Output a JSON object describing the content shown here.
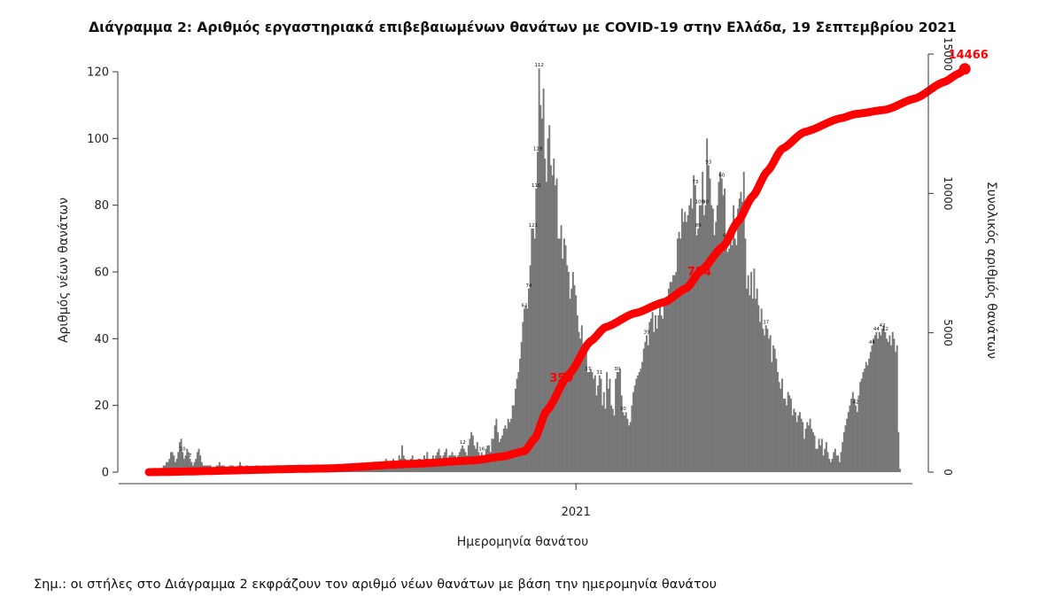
{
  "chart_data": {
    "type": "bar",
    "title": "Διάγραμμα 2: Αριθμός εργαστηριακά επιβεβαιωμένων θανάτων με COVID-19 στην Ελλάδα, 19 Σεπτεμβρίου 2021",
    "xlabel": "Ημερομηνία θανάτου",
    "ylabel": "Αριθμός νέων θανάτων",
    "y2label": "Συνολικός αριθμός θανάτων",
    "x_ticks": [
      "2021"
    ],
    "y_ticks": [
      0,
      20,
      40,
      60,
      80,
      100,
      120
    ],
    "y2_ticks": [
      0,
      5000,
      10000,
      15000
    ],
    "ylim": [
      0,
      127
    ],
    "y2lim": [
      0,
      15000
    ],
    "bar_color": "#777777",
    "line_color": "#ff0000",
    "series": [
      {
        "name": "",
        "kind": "bar",
        "values": [
          1,
          1,
          1,
          1,
          1,
          1,
          1,
          1,
          1,
          1,
          2,
          2,
          3,
          3,
          4,
          6,
          6,
          5,
          3,
          4,
          6,
          9,
          10,
          6,
          4,
          5,
          7,
          6,
          4,
          3,
          2,
          3,
          4,
          6,
          7,
          5,
          3,
          2,
          2,
          2,
          2,
          2,
          2,
          1,
          1,
          1,
          2,
          2,
          3,
          2,
          2,
          2,
          1,
          1,
          1,
          2,
          2,
          2,
          1,
          1,
          1,
          2,
          3,
          2,
          1,
          1,
          2,
          2,
          1,
          1,
          1,
          1,
          1,
          2,
          2,
          1,
          1,
          1,
          2,
          2,
          1,
          1,
          1,
          1,
          1,
          2,
          2,
          1,
          1,
          1,
          1,
          1,
          2,
          2,
          1,
          1,
          1,
          2,
          2,
          1,
          1,
          1,
          1,
          2,
          1,
          1,
          1,
          1,
          1,
          2,
          2,
          1,
          1,
          1,
          1,
          2,
          2,
          1,
          1,
          1,
          1,
          2,
          1,
          1,
          1,
          2,
          1,
          2,
          1,
          1,
          1,
          1,
          2,
          2,
          2,
          1,
          1,
          2,
          2,
          2,
          2,
          1,
          2,
          2,
          2,
          1,
          2,
          1,
          1,
          2,
          2,
          2,
          3,
          2,
          2,
          3,
          3,
          2,
          2,
          1,
          3,
          4,
          2,
          2,
          3,
          2,
          4,
          3,
          2,
          3,
          5,
          4,
          8,
          5,
          4,
          3,
          2,
          3,
          4,
          5,
          3,
          2,
          3,
          4,
          4,
          3,
          3,
          5,
          4,
          6,
          4,
          3,
          4,
          5,
          4,
          5,
          6,
          7,
          5,
          4,
          5,
          6,
          7,
          4,
          5,
          5,
          6,
          5,
          5,
          4,
          5,
          6,
          7,
          8,
          7,
          6,
          5,
          8,
          10,
          12,
          11,
          8,
          7,
          9,
          6,
          5,
          6,
          5,
          4,
          7,
          8,
          8,
          6,
          10,
          10,
          14,
          16,
          12,
          9,
          10,
          11,
          13,
          14,
          13,
          16,
          15,
          16,
          20,
          20,
          25,
          28,
          30,
          34,
          39,
          45,
          49,
          50,
          49,
          55,
          62,
          73,
          73,
          70,
          85,
          96,
          121,
          110,
          106,
          115,
          94,
          87,
          100,
          104,
          92,
          89,
          94,
          86,
          88,
          70,
          70,
          74,
          64,
          70,
          68,
          62,
          60,
          52,
          55,
          60,
          56,
          53,
          47,
          42,
          40,
          44,
          37,
          37,
          36,
          30,
          30,
          31,
          30,
          28,
          29,
          23,
          26,
          29,
          28,
          20,
          24,
          19,
          30,
          25,
          28,
          20,
          19,
          17,
          28,
          30,
          30,
          31,
          23,
          18,
          17,
          18,
          16,
          14,
          15,
          20,
          24,
          26,
          28,
          29,
          30,
          31,
          33,
          37,
          39,
          41,
          38,
          45,
          46,
          48,
          42,
          47,
          43,
          47,
          51,
          47,
          46,
          50,
          52,
          52,
          55,
          57,
          57,
          59,
          59,
          60,
          70,
          72,
          70,
          79,
          75,
          78,
          75,
          77,
          80,
          82,
          79,
          89,
          86,
          71,
          73,
          80,
          80,
          90,
          77,
          80,
          100,
          92,
          88,
          80,
          79,
          71,
          75,
          80,
          87,
          90,
          88,
          83,
          85,
          70,
          66,
          67,
          70,
          68,
          80,
          70,
          68,
          79,
          82,
          84,
          81,
          90,
          70,
          55,
          59,
          53,
          60,
          52,
          61,
          52,
          55,
          50,
          45,
          49,
          43,
          41,
          44,
          43,
          40,
          41,
          33,
          38,
          37,
          34,
          30,
          27,
          25,
          28,
          22,
          22,
          20,
          24,
          23,
          22,
          17,
          19,
          18,
          15,
          17,
          18,
          16,
          15,
          10,
          13,
          15,
          14,
          16,
          13,
          12,
          11,
          7,
          7,
          10,
          8,
          10,
          5,
          7,
          9,
          6,
          4,
          3,
          4,
          6,
          7,
          5,
          5,
          3,
          6,
          9,
          12,
          14,
          16,
          18,
          20,
          22,
          24,
          22,
          20,
          18,
          23,
          27,
          28,
          30,
          31,
          33,
          32,
          34,
          36,
          38,
          40,
          41,
          42,
          40,
          42,
          41,
          43,
          44,
          42,
          40,
          39,
          41,
          38,
          42,
          40,
          36,
          38,
          12,
          1
        ]
      },
      {
        "name": "",
        "kind": "line",
        "cumulative_points": [
          [
            0,
            0
          ],
          [
            120,
            130
          ],
          [
            180,
            300
          ],
          [
            220,
            420
          ],
          [
            240,
            560
          ],
          [
            255,
            750
          ],
          [
            262,
            1200
          ],
          [
            270,
            2200
          ],
          [
            285,
            3500
          ],
          [
            300,
            4700
          ],
          [
            310,
            5200
          ],
          [
            330,
            5700
          ],
          [
            350,
            6100
          ],
          [
            365,
            6600
          ],
          [
            375,
            7240
          ],
          [
            390,
            8100
          ],
          [
            400,
            9000
          ],
          [
            410,
            9900
          ],
          [
            420,
            10800
          ],
          [
            430,
            11600
          ],
          [
            445,
            12200
          ],
          [
            470,
            12700
          ],
          [
            480,
            12850
          ],
          [
            500,
            13000
          ],
          [
            520,
            13400
          ],
          [
            540,
            14000
          ],
          [
            550,
            14300
          ],
          [
            554,
            14466
          ]
        ]
      }
    ],
    "annotations": [
      {
        "text": "359",
        "x": 285,
        "y2": 3500
      },
      {
        "text": "724",
        "x": 375,
        "y2": 7240
      },
      {
        "text": "14466",
        "x": 554,
        "y2": 14466
      }
    ],
    "bar_value_labels": [
      {
        "i": 261,
        "text": "121"
      },
      {
        "i": 264,
        "text": "119"
      },
      {
        "i": 263,
        "text": "110"
      },
      {
        "i": 265,
        "text": "112"
      },
      {
        "i": 374,
        "text": "100"
      },
      {
        "i": 255,
        "text": "62"
      },
      {
        "i": 258,
        "text": "74"
      },
      {
        "i": 371,
        "text": "73"
      },
      {
        "i": 373,
        "text": "89"
      },
      {
        "i": 380,
        "text": "93"
      },
      {
        "i": 378,
        "text": "90"
      },
      {
        "i": 392,
        "text": "61"
      },
      {
        "i": 389,
        "text": "60"
      },
      {
        "i": 419,
        "text": "37"
      },
      {
        "i": 480,
        "text": "42"
      },
      {
        "i": 491,
        "text": "44"
      },
      {
        "i": 494,
        "text": "44"
      },
      {
        "i": 498,
        "text": "42"
      },
      {
        "i": 298,
        "text": "37"
      },
      {
        "i": 306,
        "text": "31"
      },
      {
        "i": 318,
        "text": "30"
      },
      {
        "i": 322,
        "text": "30"
      },
      {
        "i": 338,
        "text": "39"
      },
      {
        "i": 23,
        "text": "10"
      },
      {
        "i": 28,
        "text": "7"
      },
      {
        "i": 213,
        "text": "12"
      },
      {
        "i": 226,
        "text": "16"
      },
      {
        "i": 500,
        "text": "12"
      }
    ],
    "note": "Σημ.: οι στήλες στο Διάγραμμα 2 εκφράζουν τον αριθμό νέων θανάτων με βάση την ημερομηνία θανάτου"
  }
}
